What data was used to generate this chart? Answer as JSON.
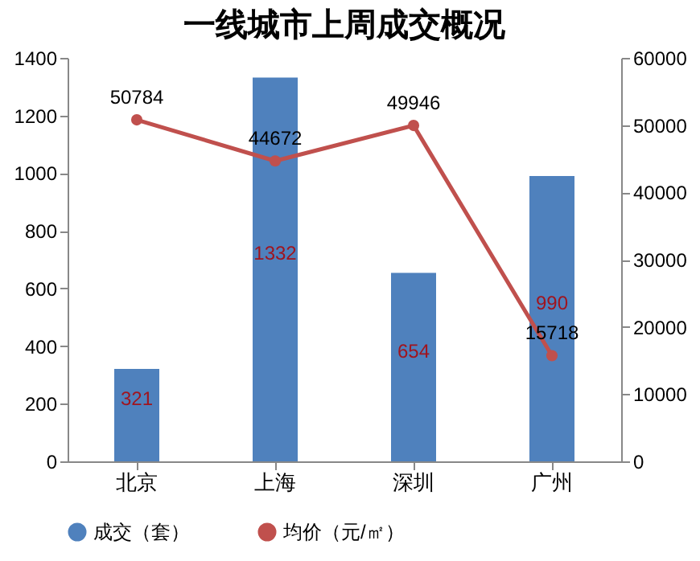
{
  "chart_data": {
    "type": "bar",
    "title": "一线城市上周成交概况",
    "categories": [
      "北京",
      "上海",
      "深圳",
      "广州"
    ],
    "series": [
      {
        "name": "成交（套）",
        "color": "#4f81bd",
        "values": [
          321,
          1332,
          654,
          990
        ]
      },
      {
        "name": "均价（元/㎡）",
        "type": "line",
        "axis": "y2",
        "color": "#c0504d",
        "values": [
          50784,
          44672,
          49946,
          15718
        ]
      }
    ],
    "ylim": [
      0,
      1400
    ],
    "yticks": [
      0,
      200,
      400,
      600,
      800,
      1000,
      1200,
      1400
    ],
    "y2lim": [
      0,
      60000
    ],
    "y2ticks": [
      0,
      10000,
      20000,
      30000,
      40000,
      50000,
      60000
    ],
    "data_labels": true,
    "marker": "circle",
    "line_style": "solid",
    "grid": false,
    "legend": "bottom"
  }
}
